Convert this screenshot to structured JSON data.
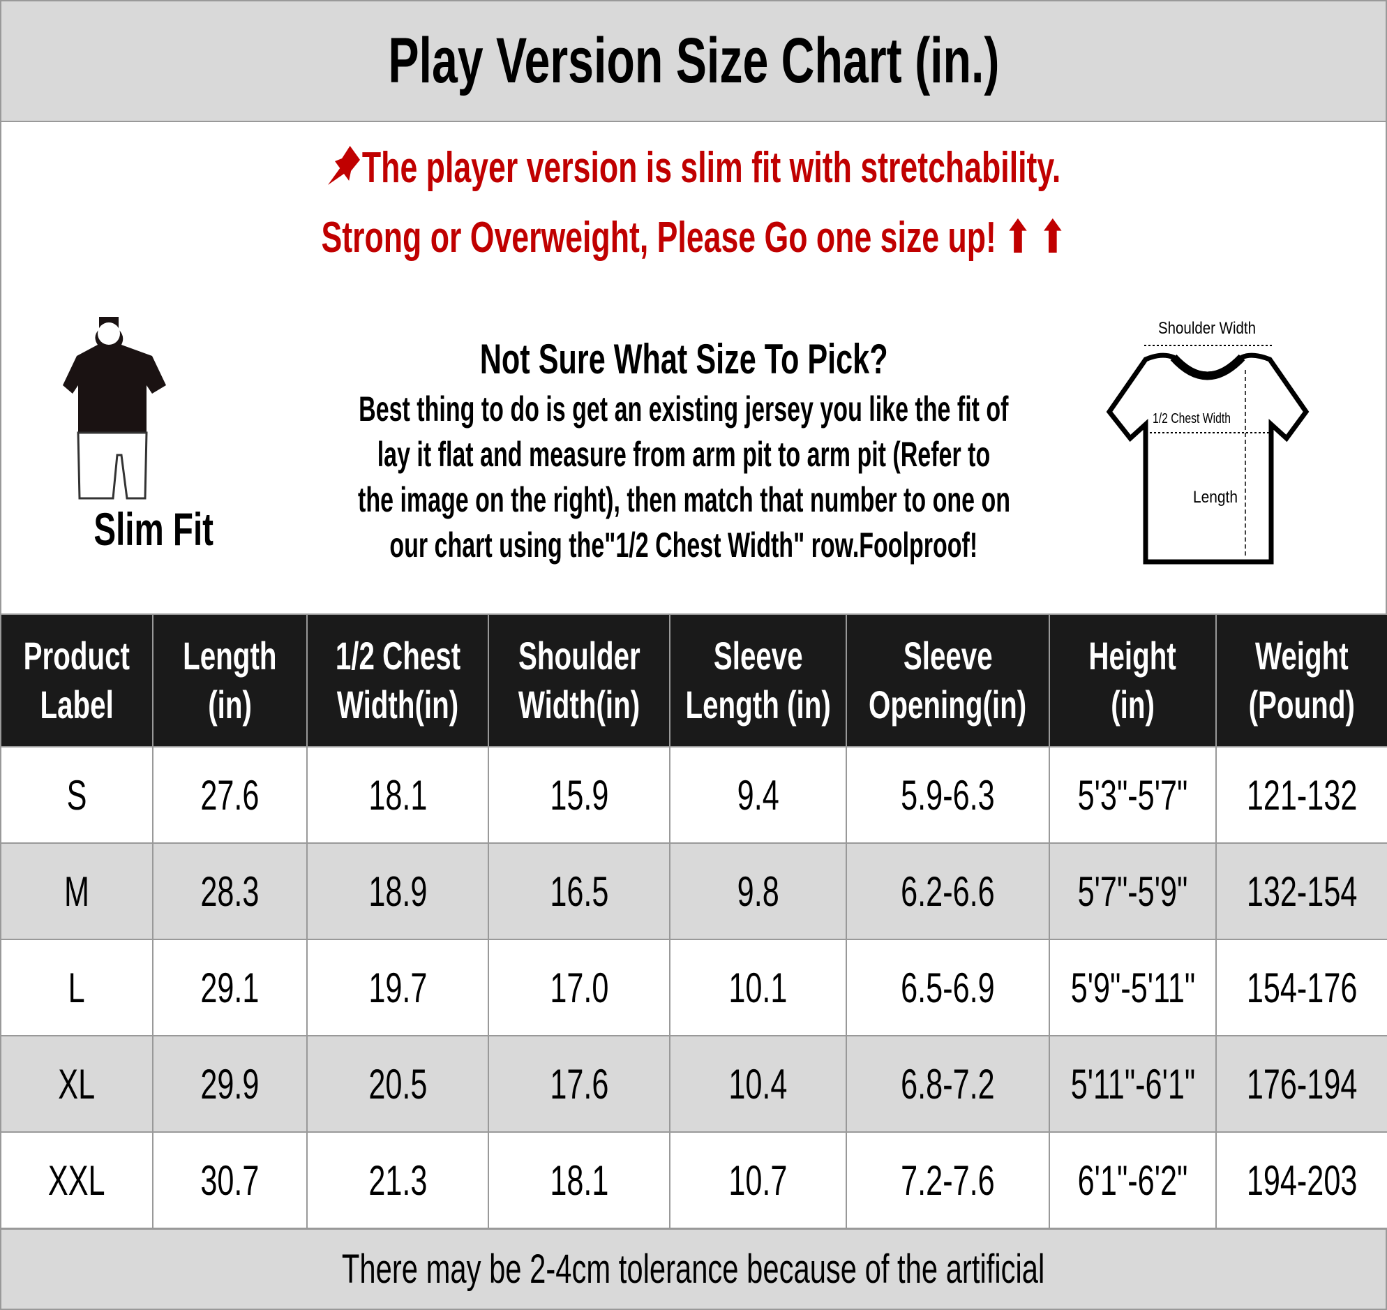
{
  "title": "Play Version Size Chart (in.)",
  "notice": {
    "line1": "The player version is slim fit with stretchability.",
    "line2": "Strong or Overweight, Please Go one size up! ⬆ ⬆",
    "color": "#c00000",
    "pin_icon": "pushpin-icon"
  },
  "slim_fit": {
    "label": "Slim Fit"
  },
  "guide": {
    "heading": "Not Sure What Size To Pick?",
    "lines": [
      "Best thing to do is get an existing jersey you like the fit of",
      "lay it flat and measure from arm pit to arm pit (Refer to",
      "the image on the right), then match that number to one on",
      "our chart using the\"1/2 Chest Width\" row.Foolproof!"
    ]
  },
  "diagram": {
    "shoulder": "Shoulder Width",
    "chest": "1/2 Chest Width",
    "length": "Length"
  },
  "table": {
    "headers": [
      [
        "Product",
        "Label"
      ],
      [
        "Length",
        "(in)"
      ],
      [
        "1/2 Chest",
        "Width(in)"
      ],
      [
        "Shoulder",
        "Width(in)"
      ],
      [
        "Sleeve",
        "Length (in)"
      ],
      [
        "Sleeve",
        "Opening(in)"
      ],
      [
        "Height",
        "(in)"
      ],
      [
        "Weight",
        "(Pound)"
      ]
    ],
    "rows": [
      [
        "S",
        "27.6",
        "18.1",
        "15.9",
        "9.4",
        "5.9-6.3",
        "5'3\"-5'7\"",
        "121-132"
      ],
      [
        "M",
        "28.3",
        "18.9",
        "16.5",
        "9.8",
        "6.2-6.6",
        "5'7\"-5'9\"",
        "132-154"
      ],
      [
        "L",
        "29.1",
        "19.7",
        "17.0",
        "10.1",
        "6.5-6.9",
        "5'9\"-5'11\"",
        "154-176"
      ],
      [
        "XL",
        "29.9",
        "20.5",
        "17.6",
        "10.4",
        "6.8-7.2",
        "5'11\"-6'1\"",
        "176-194"
      ],
      [
        "XXL",
        "30.7",
        "21.3",
        "18.1",
        "10.7",
        "7.2-7.6",
        "6'1\"-6'2\"",
        "194-203"
      ]
    ]
  },
  "footer": "There may be 2-4cm tolerance because of the artificial"
}
